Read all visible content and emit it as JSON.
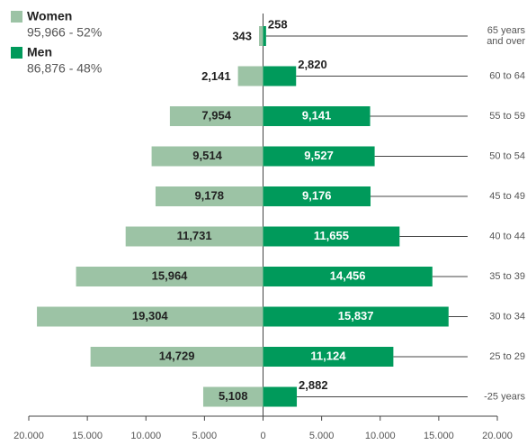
{
  "chart_data": {
    "type": "pyramid",
    "categories": [
      "65 years and over",
      "60 to 64",
      "55 to 59",
      "50 to 54",
      "45 to 49",
      "40 to 44",
      "35 to 39",
      "30 to 34",
      "25 to 29",
      "-25 years"
    ],
    "series": [
      {
        "name": "Women",
        "summary": "95,966 - 52%",
        "color": "#9cc3a5",
        "values": [
          343,
          2141,
          7954,
          9514,
          9178,
          11731,
          15964,
          19304,
          14729,
          5108
        ],
        "value_labels": [
          "343",
          "2,141",
          "7,954",
          "9,514",
          "9,178",
          "11,731",
          "15,964",
          "19,304",
          "14,729",
          "5,108"
        ]
      },
      {
        "name": "Men",
        "summary": "86,876 - 48%",
        "color": "#009a5b",
        "values": [
          258,
          2820,
          9141,
          9527,
          9176,
          11655,
          14456,
          15837,
          11124,
          2882
        ],
        "value_labels": [
          "258",
          "2,820",
          "9,141",
          "9,527",
          "9,176",
          "11,655",
          "14,456",
          "15,837",
          "11,124",
          "2,882"
        ]
      }
    ],
    "xlim": [
      -20000,
      20000
    ],
    "xticks": [
      {
        "value": -20000,
        "label": "20.000"
      },
      {
        "value": -15000,
        "label": "15.000"
      },
      {
        "value": -10000,
        "label": "10.000"
      },
      {
        "value": -5000,
        "label": "5.000"
      },
      0,
      {
        "value": 5000,
        "label": "5.000"
      },
      {
        "value": 10000,
        "label": "10.000"
      },
      {
        "value": 15000,
        "label": "15.000"
      },
      {
        "value": 20000,
        "label": "20.000"
      }
    ]
  }
}
